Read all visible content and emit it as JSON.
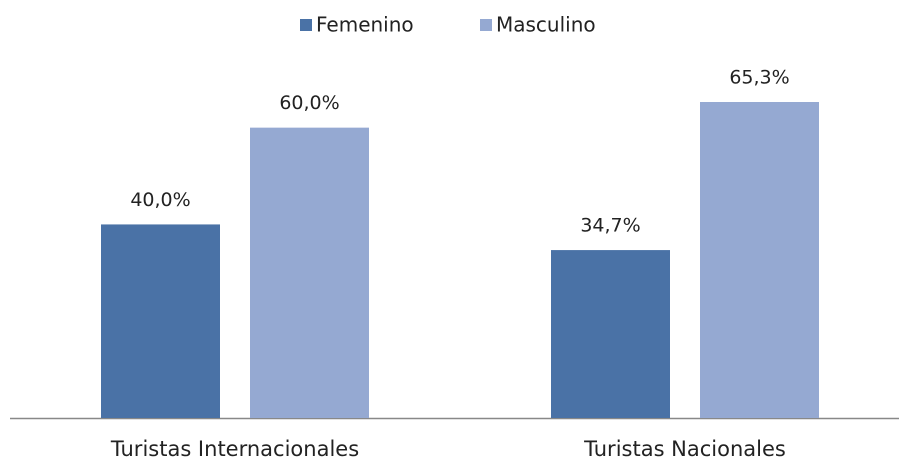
{
  "chart_data": {
    "type": "bar",
    "categories": [
      "Turistas Internacionales",
      "Turistas Nacionales"
    ],
    "series": [
      {
        "name": "Femenino",
        "color": "#4a72a6",
        "values": [
          40.0,
          34.7
        ],
        "value_labels": [
          "40,0%",
          "34,7%"
        ]
      },
      {
        "name": "Masculino",
        "color": "#95a9d2",
        "values": [
          60.0,
          65.3
        ],
        "value_labels": [
          "60,0%",
          "65,3%"
        ]
      }
    ],
    "legend": "top"
  }
}
